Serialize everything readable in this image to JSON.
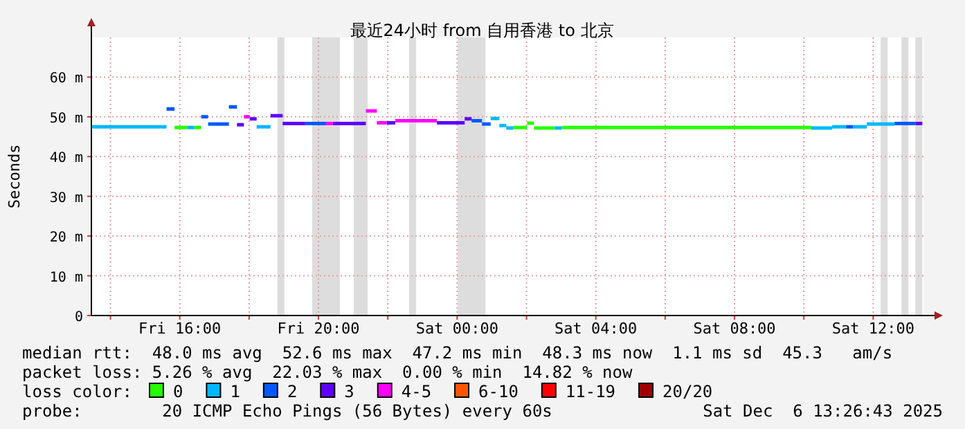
{
  "chart_data": {
    "type": "line",
    "title": "最近24小时 from 自用香港 to 北京",
    "ylabel": "Seconds",
    "legend_title": "loss color:",
    "legend": "bottom",
    "grid": true,
    "line_style": "solid",
    "marker": "none",
    "xlim": [
      "2025-12-05T13:27",
      "2025-12-06T13:27"
    ],
    "ylim": [
      0,
      70
    ],
    "xticks": [
      {
        "value": "2025-12-05T14:00",
        "label": null
      },
      {
        "value": "2025-12-05T16:00",
        "label": "Fri 16:00"
      },
      {
        "value": "2025-12-05T18:00",
        "label": null
      },
      {
        "value": "2025-12-05T20:00",
        "label": "Fri 20:00"
      },
      {
        "value": "2025-12-05T22:00",
        "label": null
      },
      {
        "value": "2025-12-06T00:00",
        "label": "Sat 00:00"
      },
      {
        "value": "2025-12-06T02:00",
        "label": null
      },
      {
        "value": "2025-12-06T04:00",
        "label": "Sat 04:00"
      },
      {
        "value": "2025-12-06T06:00",
        "label": null
      },
      {
        "value": "2025-12-06T08:00",
        "label": "Sat 08:00"
      },
      {
        "value": "2025-12-06T10:00",
        "label": null
      },
      {
        "value": "2025-12-06T12:00",
        "label": "Sat 12:00"
      }
    ],
    "yticks": [
      0,
      {
        "value": 10,
        "label": "10 m"
      },
      {
        "value": 20,
        "label": "20 m"
      },
      {
        "value": 30,
        "label": "30 m"
      },
      {
        "value": 40,
        "label": "40 m"
      },
      {
        "value": 50,
        "label": "50 m"
      },
      {
        "value": 60,
        "label": "60 m"
      }
    ],
    "bands": [
      {
        "axis": "x",
        "from": "2025-12-05T18:49",
        "to": "2025-12-05T19:01",
        "color": "#dddddd"
      },
      {
        "axis": "x",
        "from": "2025-12-05T19:49",
        "to": "2025-12-05T20:37",
        "color": "#dddddd"
      },
      {
        "axis": "x",
        "from": "2025-12-05T21:01",
        "to": "2025-12-05T21:25",
        "color": "#dddddd"
      },
      {
        "axis": "x",
        "from": "2025-12-05T22:37",
        "to": "2025-12-05T22:49",
        "color": "#dddddd"
      },
      {
        "axis": "x",
        "from": "2025-12-06T00:01",
        "to": "2025-12-06T00:49",
        "color": "#dddddd"
      },
      {
        "axis": "x",
        "from": "2025-12-06T12:13",
        "to": "2025-12-06T12:25",
        "color": "#dddddd"
      },
      {
        "axis": "x",
        "from": "2025-12-06T12:49",
        "to": "2025-12-06T13:01",
        "color": "#dddddd"
      },
      {
        "axis": "x",
        "from": "2025-12-06T13:13",
        "to": "2025-12-06T13:25",
        "color": "#dddddd"
      }
    ],
    "series": [
      {
        "name": "0",
        "color": "#26ff00",
        "x": [
          "2025-12-05T15:51",
          "2025-12-05T16:13",
          null,
          "2025-12-05T16:25",
          "2025-12-05T16:37",
          null,
          "2025-12-06T01:37",
          "2025-12-06T02:01",
          null,
          "2025-12-06T02:01",
          "2025-12-06T02:13",
          null,
          "2025-12-06T02:13",
          "2025-12-06T02:49",
          null,
          "2025-12-06T03:01",
          "2025-12-06T10:13"
        ],
        "values": [
          47.3,
          47.3,
          null,
          47.3,
          47.3,
          null,
          47.3,
          47.3,
          null,
          48.4,
          48.4,
          null,
          47.2,
          47.2,
          null,
          47.3,
          47.3
        ]
      },
      {
        "name": "1",
        "color": "#00b8ff",
        "x": [
          "2025-12-05T13:27",
          "2025-12-05T15:37",
          null,
          "2025-12-05T16:13",
          "2025-12-05T16:25",
          null,
          "2025-12-05T18:13",
          "2025-12-05T18:37",
          null,
          "2025-12-06T00:58",
          "2025-12-06T01:13",
          null,
          "2025-12-06T01:13",
          "2025-12-06T01:25",
          null,
          "2025-12-06T01:25",
          "2025-12-06T01:37",
          null,
          "2025-12-06T02:49",
          "2025-12-06T03:01",
          null,
          "2025-12-06T10:13",
          "2025-12-06T10:49",
          null,
          "2025-12-06T10:49",
          "2025-12-06T11:13",
          null,
          "2025-12-06T11:25",
          "2025-12-06T11:49",
          null,
          "2025-12-06T11:49",
          "2025-12-06T12:37"
        ],
        "values": [
          47.5,
          47.5,
          null,
          47.3,
          47.3,
          null,
          47.5,
          47.5,
          null,
          49.6,
          49.6,
          null,
          47.8,
          47.8,
          null,
          47.2,
          47.2,
          null,
          47.2,
          47.2,
          null,
          47.2,
          47.2,
          null,
          47.5,
          47.5,
          null,
          47.5,
          47.5,
          null,
          48.2,
          48.2
        ]
      },
      {
        "name": "2",
        "color": "#0059ff",
        "x": [
          "2025-12-05T15:37",
          "2025-12-05T15:51",
          null,
          "2025-12-05T16:37",
          "2025-12-05T16:49",
          null,
          "2025-12-05T16:49",
          "2025-12-05T17:25",
          null,
          "2025-12-05T17:25",
          "2025-12-05T17:39",
          null,
          "2025-12-05T19:37",
          "2025-12-05T20:13",
          null,
          "2025-12-06T00:25",
          "2025-12-06T00:43",
          null,
          "2025-12-06T00:43",
          "2025-12-06T00:58",
          null,
          "2025-12-06T11:13",
          "2025-12-06T11:25",
          null,
          "2025-12-06T12:37",
          "2025-12-06T13:13"
        ],
        "values": [
          52.0,
          52.0,
          null,
          50.0,
          50.0,
          null,
          48.2,
          48.2,
          null,
          52.5,
          52.5,
          null,
          48.3,
          48.3,
          null,
          49.0,
          49.0,
          null,
          48.2,
          48.2,
          null,
          47.5,
          47.5,
          null,
          48.3,
          48.3
        ]
      },
      {
        "name": "3",
        "color": "#5e00ff",
        "x": [
          "2025-12-05T17:39",
          "2025-12-05T17:51",
          null,
          "2025-12-05T18:01",
          "2025-12-05T18:13",
          null,
          "2025-12-05T18:37",
          "2025-12-05T18:58",
          null,
          "2025-12-05T18:58",
          "2025-12-05T19:37",
          null,
          "2025-12-05T20:25",
          "2025-12-05T21:22",
          null,
          "2025-12-05T21:58",
          "2025-12-05T22:13",
          null,
          "2025-12-05T23:25",
          "2025-12-06T00:13",
          null,
          "2025-12-06T00:13",
          "2025-12-06T00:25",
          null,
          "2025-12-06T13:13",
          "2025-12-06T13:25"
        ],
        "values": [
          48.0,
          48.0,
          null,
          49.5,
          49.5,
          null,
          50.3,
          50.3,
          null,
          48.3,
          48.3,
          null,
          48.3,
          48.3,
          null,
          48.5,
          48.5,
          null,
          48.5,
          48.5,
          null,
          49.5,
          49.5,
          null,
          48.3,
          48.3
        ]
      },
      {
        "name": "4-5",
        "color": "#ff00ff",
        "x": [
          "2025-12-05T17:51",
          "2025-12-05T18:01",
          null,
          "2025-12-05T20:13",
          "2025-12-05T20:25",
          null,
          "2025-12-05T21:22",
          "2025-12-05T21:41",
          null,
          "2025-12-05T21:41",
          "2025-12-05T21:58",
          null,
          "2025-12-05T22:13",
          "2025-12-05T23:25"
        ],
        "values": [
          50.0,
          50.0,
          null,
          48.3,
          48.3,
          null,
          51.5,
          51.5,
          null,
          48.5,
          48.5,
          null,
          49.0,
          49.0
        ]
      },
      {
        "name": "6-10",
        "color": "#ff5500"
      },
      {
        "name": "11-19",
        "color": "#ff0000"
      },
      {
        "name": "20/20",
        "color": "#a10000"
      }
    ],
    "annotations": [
      "median rtt:  48.0 ms avg  52.6 ms max  47.2 ms min  48.3 ms now  1.1 ms sd  45.3   am/s",
      "packet loss: 5.26 % avg  22.03 % max  0.00 % min  14.82 % now",
      "probe:        20 ICMP Echo Pings (56 Bytes) every 60s",
      "Sat Dec  6 13:26:43 2025"
    ]
  }
}
